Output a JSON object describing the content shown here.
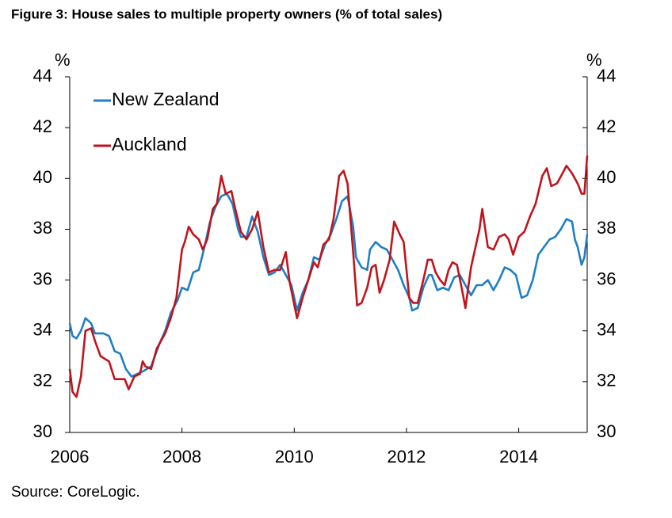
{
  "chart_data": {
    "type": "line",
    "title": "Figure 3: House sales to multiple property owners (% of total sales)",
    "y_label": "%",
    "y2_label": "%",
    "source": "Source: CoreLogic.",
    "xlim": [
      2006,
      2015.22
    ],
    "xticks": [
      2006,
      2008,
      2010,
      2012,
      2014
    ],
    "ylim": [
      30,
      44
    ],
    "yticks": [
      30,
      32,
      34,
      36,
      38,
      40,
      42,
      44
    ],
    "y2lim": [
      30,
      44
    ],
    "y2ticks": [
      30,
      32,
      34,
      36,
      38,
      40,
      42,
      44
    ],
    "grid": false,
    "legend": "upper left",
    "series": [
      {
        "name": "New Zealand",
        "color": "#1f7fc4",
        "x": [
          2006.0,
          2006.05,
          2006.12,
          2006.2,
          2006.28,
          2006.38,
          2006.45,
          2006.6,
          2006.7,
          2006.8,
          2006.9,
          2007.0,
          2007.1,
          2007.2,
          2007.3,
          2007.45,
          2007.6,
          2007.7,
          2007.8,
          2007.92,
          2008.0,
          2008.1,
          2008.2,
          2008.3,
          2008.4,
          2008.5,
          2008.6,
          2008.7,
          2008.8,
          2008.9,
          2009.0,
          2009.05,
          2009.15,
          2009.25,
          2009.35,
          2009.45,
          2009.55,
          2009.65,
          2009.75,
          2009.85,
          2009.95,
          2010.05,
          2010.15,
          2010.25,
          2010.35,
          2010.45,
          2010.55,
          2010.65,
          2010.75,
          2010.85,
          2010.95,
          2011.05,
          2011.1,
          2011.2,
          2011.3,
          2011.35,
          2011.45,
          2011.55,
          2011.65,
          2011.75,
          2011.85,
          2011.95,
          2012.05,
          2012.1,
          2012.2,
          2012.3,
          2012.4,
          2012.45,
          2012.55,
          2012.65,
          2012.75,
          2012.85,
          2012.95,
          2013.05,
          2013.15,
          2013.25,
          2013.35,
          2013.45,
          2013.55,
          2013.65,
          2013.75,
          2013.85,
          2013.95,
          2014.05,
          2014.15,
          2014.25,
          2014.35,
          2014.45,
          2014.55,
          2014.65,
          2014.75,
          2014.85,
          2014.95,
          2015.0,
          2015.05,
          2015.12,
          2015.17,
          2015.22
        ],
        "values": [
          34.3,
          33.8,
          33.7,
          34.0,
          34.5,
          34.3,
          33.9,
          33.9,
          33.8,
          33.2,
          33.1,
          32.5,
          32.2,
          32.3,
          32.4,
          32.6,
          33.5,
          34.0,
          34.7,
          35.2,
          35.7,
          35.6,
          36.3,
          36.4,
          37.3,
          38.3,
          38.9,
          39.3,
          39.4,
          39.0,
          38.0,
          37.7,
          37.7,
          38.5,
          37.9,
          36.9,
          36.2,
          36.3,
          36.6,
          36.2,
          35.8,
          34.8,
          35.5,
          36.0,
          36.9,
          36.8,
          37.4,
          37.8,
          38.4,
          39.1,
          39.3,
          38.1,
          36.9,
          36.5,
          36.4,
          37.2,
          37.5,
          37.3,
          37.2,
          36.8,
          36.4,
          35.8,
          35.3,
          34.8,
          34.9,
          35.7,
          36.2,
          36.2,
          35.6,
          35.7,
          35.6,
          36.1,
          36.2,
          35.8,
          35.4,
          35.8,
          35.8,
          36.0,
          35.6,
          36.0,
          36.5,
          36.4,
          36.2,
          35.3,
          35.4,
          36.0,
          37.0,
          37.3,
          37.6,
          37.7,
          38.0,
          38.4,
          38.3,
          37.6,
          37.3,
          36.6,
          36.9,
          37.8
        ]
      },
      {
        "name": "Auckland",
        "color": "#c0141c",
        "x": [
          2006.0,
          2006.05,
          2006.12,
          2006.2,
          2006.28,
          2006.38,
          2006.45,
          2006.55,
          2006.7,
          2006.8,
          2006.9,
          2006.98,
          2007.05,
          2007.15,
          2007.25,
          2007.3,
          2007.35,
          2007.45,
          2007.55,
          2007.7,
          2007.8,
          2007.9,
          2008.0,
          2008.05,
          2008.12,
          2008.2,
          2008.3,
          2008.37,
          2008.45,
          2008.55,
          2008.62,
          2008.7,
          2008.78,
          2008.88,
          2008.95,
          2009.05,
          2009.15,
          2009.25,
          2009.35,
          2009.45,
          2009.55,
          2009.65,
          2009.75,
          2009.85,
          2009.92,
          2010.05,
          2010.15,
          2010.25,
          2010.35,
          2010.42,
          2010.52,
          2010.62,
          2010.7,
          2010.8,
          2010.88,
          2010.95,
          2011.05,
          2011.12,
          2011.2,
          2011.3,
          2011.38,
          2011.45,
          2011.52,
          2011.6,
          2011.7,
          2011.78,
          2011.88,
          2011.95,
          2012.05,
          2012.12,
          2012.2,
          2012.3,
          2012.38,
          2012.45,
          2012.52,
          2012.6,
          2012.68,
          2012.75,
          2012.82,
          2012.9,
          2013.0,
          2013.05,
          2013.15,
          2013.3,
          2013.35,
          2013.45,
          2013.55,
          2013.65,
          2013.75,
          2013.82,
          2013.9,
          2014.0,
          2014.1,
          2014.2,
          2014.3,
          2014.42,
          2014.5,
          2014.58,
          2014.68,
          2014.78,
          2014.85,
          2014.95,
          2015.05,
          2015.12,
          2015.17,
          2015.22
        ],
        "values": [
          32.5,
          31.6,
          31.4,
          32.2,
          34.0,
          34.1,
          33.6,
          33.0,
          32.8,
          32.1,
          32.1,
          32.1,
          31.7,
          32.2,
          32.3,
          32.8,
          32.6,
          32.5,
          33.3,
          33.9,
          34.5,
          35.3,
          37.2,
          37.5,
          38.1,
          37.8,
          37.6,
          37.2,
          37.6,
          38.8,
          39.0,
          40.1,
          39.4,
          39.5,
          38.8,
          37.9,
          37.6,
          38.0,
          38.7,
          37.3,
          36.3,
          36.4,
          36.4,
          37.1,
          35.9,
          34.5,
          35.3,
          36.0,
          36.7,
          36.5,
          37.4,
          37.6,
          38.4,
          40.1,
          40.3,
          39.8,
          37.1,
          35.0,
          35.1,
          35.7,
          36.5,
          36.6,
          35.5,
          36.0,
          36.8,
          38.3,
          37.8,
          37.5,
          35.3,
          35.1,
          35.1,
          36.0,
          36.8,
          36.8,
          36.3,
          36.0,
          35.8,
          36.4,
          36.7,
          36.6,
          35.5,
          34.9,
          36.5,
          38.0,
          38.8,
          37.3,
          37.2,
          37.7,
          37.8,
          37.6,
          37.0,
          37.7,
          37.9,
          38.5,
          39.0,
          40.1,
          40.4,
          39.7,
          39.8,
          40.2,
          40.5,
          40.2,
          39.8,
          39.4,
          39.4,
          40.9
        ]
      }
    ]
  }
}
